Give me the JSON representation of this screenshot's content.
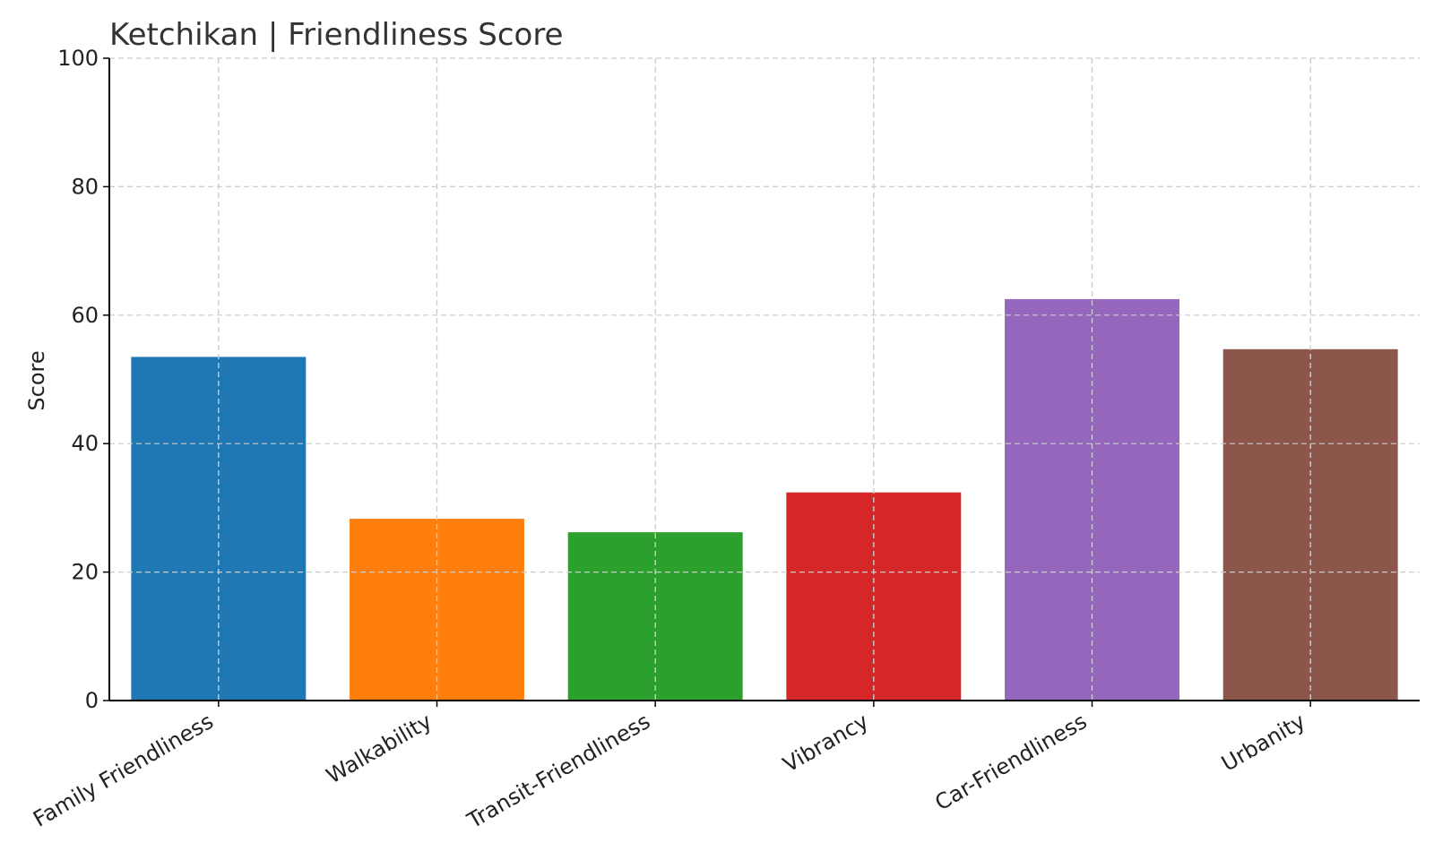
{
  "chart_data": {
    "type": "bar",
    "title": "Ketchikan | Friendliness Score",
    "xlabel": "",
    "ylabel": "Score",
    "ylim": [
      0,
      100
    ],
    "yticks": [
      0,
      20,
      40,
      60,
      80,
      100
    ],
    "grid": true,
    "categories": [
      "Family Friendliness",
      "Walkability",
      "Transit-Friendliness",
      "Vibrancy",
      "Car-Friendliness",
      "Urbanity"
    ],
    "values": [
      53.5,
      28.3,
      26.2,
      32.4,
      62.5,
      54.7
    ],
    "colors": [
      "#1f77b4",
      "#ff7f0e",
      "#2ca02c",
      "#d62728",
      "#9467bd",
      "#8c564b"
    ]
  }
}
